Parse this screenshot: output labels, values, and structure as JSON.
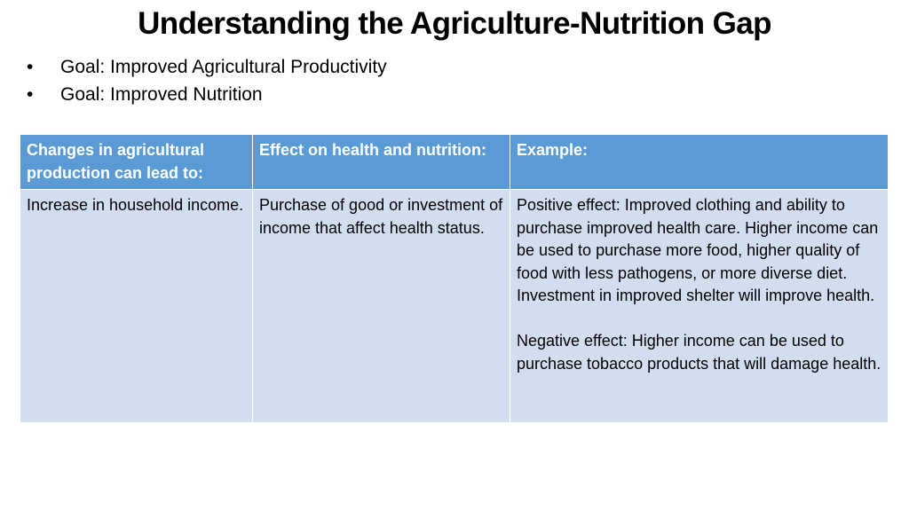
{
  "slide": {
    "title": "Understanding the Agriculture-Nutrition Gap",
    "bullets": [
      "Goal: Improved Agricultural Productivity",
      "Goal: Improved Nutrition"
    ],
    "bullet_symbol": "•"
  },
  "table": {
    "headers": [
      "Changes in agricultural production can lead to:",
      "Effect  on health and nutrition:",
      "Example:"
    ],
    "rows": [
      {
        "change": "Increase in household income.",
        "effect": "Purchase of good or investment of income that affect health status.",
        "example_positive": "Positive effect: Improved clothing and ability to purchase improved health care. Higher income can be used to purchase more food, higher quality of food with less pathogens, or more diverse diet. Investment in improved shelter will improve health.",
        "example_negative": "Negative effect: Higher income can be used to purchase tobacco products that will damage health."
      }
    ]
  },
  "colors": {
    "header_bg": "#5b9bd5",
    "body_bg": "#d2deef",
    "header_text": "#ffffff"
  }
}
